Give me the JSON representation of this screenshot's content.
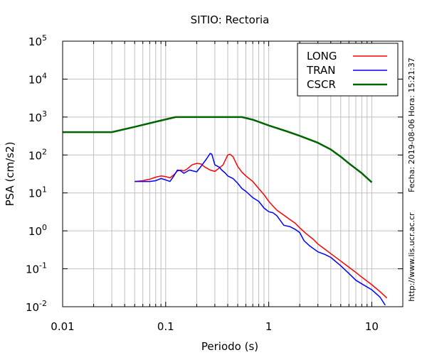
{
  "chart_data": {
    "type": "line",
    "title": "SITIO: Rectoria",
    "xlabel": "Periodo (s)",
    "ylabel": "PSA (cm/s2)",
    "x_scale": "log",
    "y_scale": "log",
    "xlim": [
      0.01,
      20
    ],
    "ylim": [
      0.01,
      100000
    ],
    "x_ticks": [
      {
        "value": 0.01,
        "label": "0.01"
      },
      {
        "value": 0.1,
        "label": "0.1"
      },
      {
        "value": 1,
        "label": "1"
      },
      {
        "value": 10,
        "label": "10"
      }
    ],
    "y_ticks": [
      {
        "value": 0.01,
        "base": "10",
        "exp": "-2"
      },
      {
        "value": 0.1,
        "base": "10",
        "exp": "-1"
      },
      {
        "value": 1,
        "base": "10",
        "exp": "0"
      },
      {
        "value": 10,
        "base": "10",
        "exp": "1"
      },
      {
        "value": 100,
        "base": "10",
        "exp": "2"
      },
      {
        "value": 1000,
        "base": "10",
        "exp": "3"
      },
      {
        "value": 10000,
        "base": "10",
        "exp": "4"
      },
      {
        "value": 100000,
        "base": "10",
        "exp": "5"
      }
    ],
    "grid": true,
    "legend_position": "top-right",
    "series": [
      {
        "name": "LONG",
        "color": "#ff0000",
        "width": 1.5,
        "points": [
          [
            0.05,
            20
          ],
          [
            0.06,
            21
          ],
          [
            0.07,
            23
          ],
          [
            0.08,
            26
          ],
          [
            0.09,
            28
          ],
          [
            0.1,
            27
          ],
          [
            0.11,
            25
          ],
          [
            0.12,
            30
          ],
          [
            0.13,
            38
          ],
          [
            0.14,
            40
          ],
          [
            0.15,
            38
          ],
          [
            0.16,
            42
          ],
          [
            0.18,
            55
          ],
          [
            0.2,
            60
          ],
          [
            0.22,
            58
          ],
          [
            0.24,
            48
          ],
          [
            0.27,
            40
          ],
          [
            0.3,
            37
          ],
          [
            0.33,
            45
          ],
          [
            0.36,
            55
          ],
          [
            0.4,
            100
          ],
          [
            0.42,
            105
          ],
          [
            0.45,
            90
          ],
          [
            0.5,
            50
          ],
          [
            0.55,
            35
          ],
          [
            0.6,
            28
          ],
          [
            0.7,
            20
          ],
          [
            0.8,
            13
          ],
          [
            0.9,
            9
          ],
          [
            1.0,
            6
          ],
          [
            1.1,
            4.5
          ],
          [
            1.2,
            3.5
          ],
          [
            1.4,
            2.6
          ],
          [
            1.6,
            2.0
          ],
          [
            1.8,
            1.6
          ],
          [
            2.0,
            1.2
          ],
          [
            2.3,
            0.85
          ],
          [
            2.7,
            0.6
          ],
          [
            3.0,
            0.45
          ],
          [
            3.5,
            0.33
          ],
          [
            4.0,
            0.25
          ],
          [
            5.0,
            0.16
          ],
          [
            6.0,
            0.11
          ],
          [
            7.0,
            0.08
          ],
          [
            8.0,
            0.06
          ],
          [
            10.0,
            0.038
          ],
          [
            12.0,
            0.025
          ],
          [
            14.0,
            0.017
          ]
        ]
      },
      {
        "name": "TRAN",
        "color": "#0000ff",
        "width": 1.5,
        "points": [
          [
            0.05,
            20
          ],
          [
            0.06,
            20
          ],
          [
            0.07,
            20
          ],
          [
            0.08,
            21
          ],
          [
            0.09,
            24
          ],
          [
            0.1,
            22
          ],
          [
            0.11,
            20
          ],
          [
            0.12,
            28
          ],
          [
            0.13,
            40
          ],
          [
            0.14,
            38
          ],
          [
            0.15,
            33
          ],
          [
            0.17,
            40
          ],
          [
            0.2,
            36
          ],
          [
            0.22,
            50
          ],
          [
            0.25,
            80
          ],
          [
            0.27,
            110
          ],
          [
            0.28,
            105
          ],
          [
            0.3,
            55
          ],
          [
            0.33,
            48
          ],
          [
            0.35,
            40
          ],
          [
            0.38,
            33
          ],
          [
            0.4,
            28
          ],
          [
            0.45,
            24
          ],
          [
            0.5,
            18
          ],
          [
            0.55,
            13
          ],
          [
            0.6,
            11
          ],
          [
            0.7,
            7.5
          ],
          [
            0.8,
            6
          ],
          [
            0.9,
            4
          ],
          [
            1.0,
            3.2
          ],
          [
            1.1,
            3.0
          ],
          [
            1.2,
            2.5
          ],
          [
            1.4,
            1.4
          ],
          [
            1.6,
            1.3
          ],
          [
            1.8,
            1.1
          ],
          [
            2.0,
            0.9
          ],
          [
            2.2,
            0.55
          ],
          [
            2.5,
            0.4
          ],
          [
            3.0,
            0.28
          ],
          [
            3.5,
            0.24
          ],
          [
            4.0,
            0.2
          ],
          [
            5.0,
            0.12
          ],
          [
            6.0,
            0.075
          ],
          [
            7.0,
            0.05
          ],
          [
            8.0,
            0.04
          ],
          [
            10.0,
            0.028
          ],
          [
            12.0,
            0.018
          ],
          [
            13.5,
            0.011
          ]
        ]
      },
      {
        "name": "CSCR",
        "color": "#006400",
        "width": 2.5,
        "points": [
          [
            0.01,
            400
          ],
          [
            0.03,
            400
          ],
          [
            0.05,
            550
          ],
          [
            0.08,
            750
          ],
          [
            0.125,
            1000
          ],
          [
            0.2,
            1000
          ],
          [
            0.3,
            1000
          ],
          [
            0.55,
            1000
          ],
          [
            0.7,
            850
          ],
          [
            1.0,
            600
          ],
          [
            1.5,
            420
          ],
          [
            2.0,
            320
          ],
          [
            3.0,
            210
          ],
          [
            4.0,
            140
          ],
          [
            5.0,
            90
          ],
          [
            6.0,
            60
          ],
          [
            8.0,
            33
          ],
          [
            10.0,
            19
          ]
        ]
      }
    ]
  },
  "side_text": {
    "date": "Fecha: 2019-08-06 Hora: 15:21:37",
    "url": "http://www.lis.ucr.ac.cr"
  }
}
